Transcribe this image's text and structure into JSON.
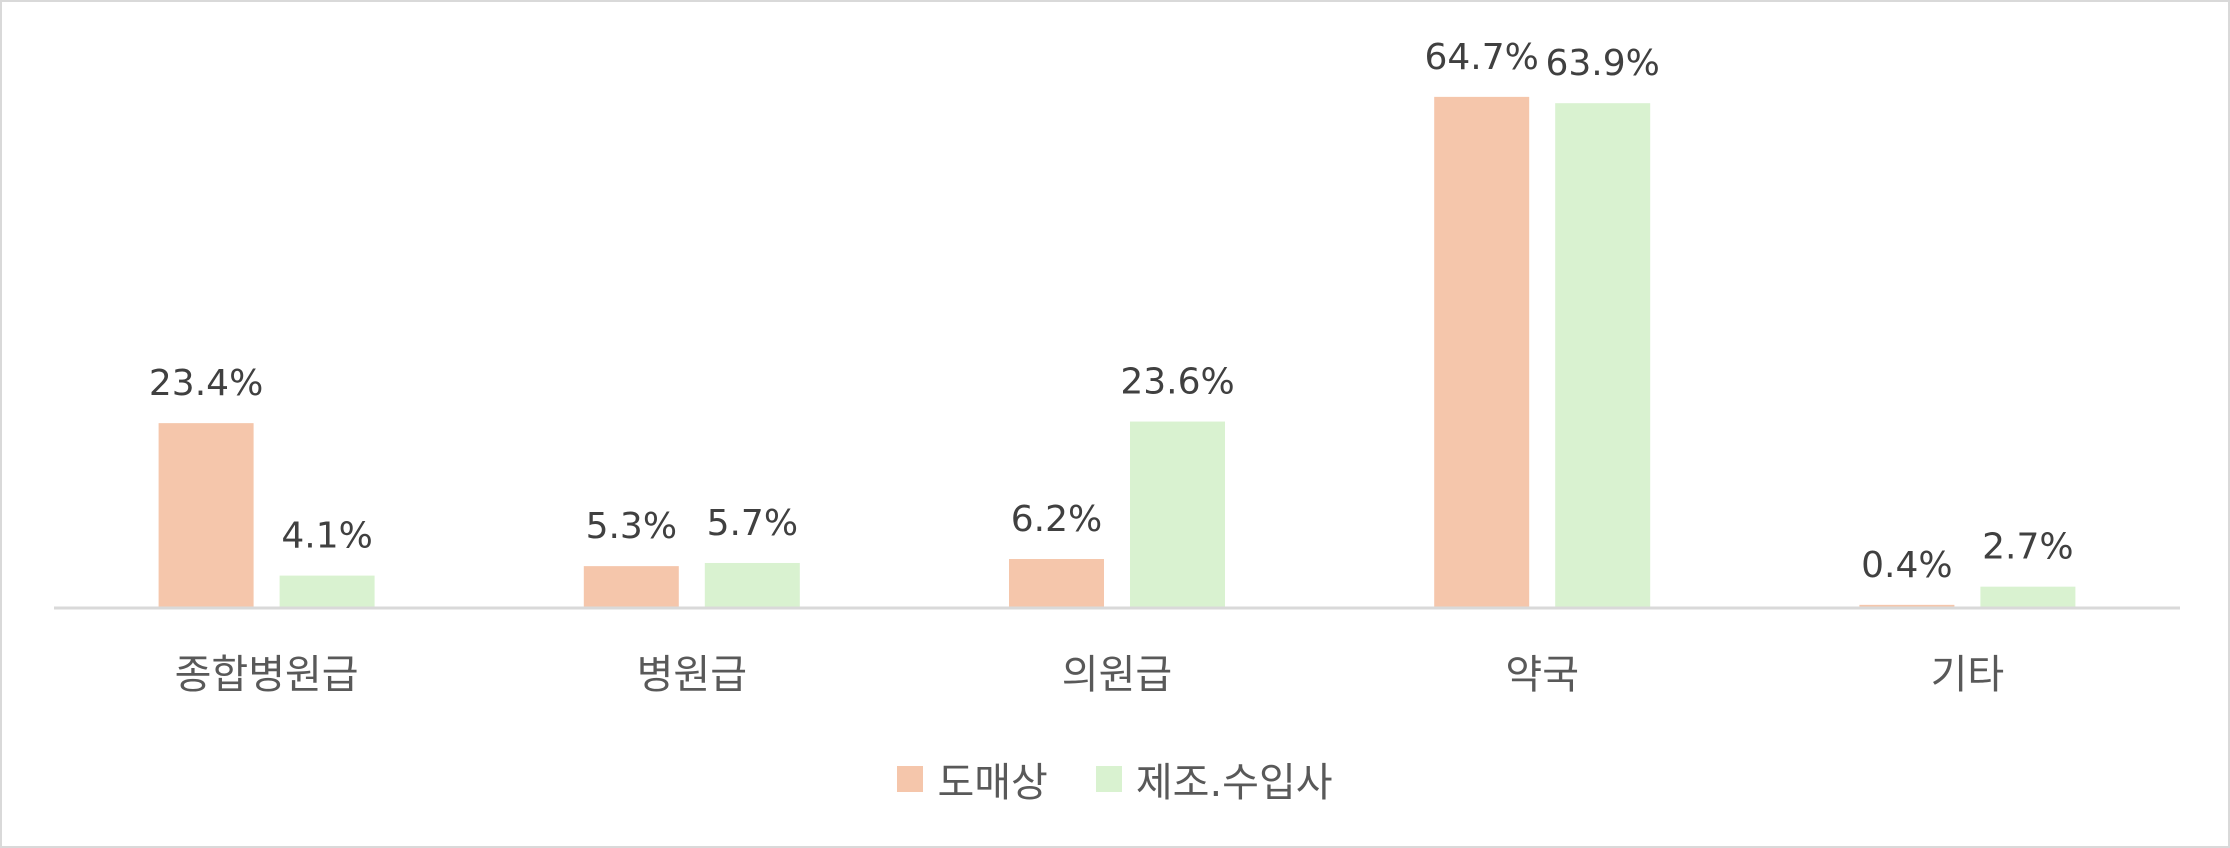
{
  "chart_data": {
    "type": "bar",
    "categories": [
      "종합병원급",
      "병원급",
      "의원급",
      "약국",
      "기타"
    ],
    "series": [
      {
        "name": "도매상",
        "values": [
          23.4,
          5.3,
          6.2,
          64.7,
          0.4
        ],
        "labels": [
          "23.4%",
          "5.3%",
          "6.2%",
          "64.7%",
          "0.4%"
        ],
        "color": "#f5c6ab"
      },
      {
        "name": "제조.수입사",
        "values": [
          4.1,
          5.7,
          23.6,
          63.9,
          2.7
        ],
        "labels": [
          "4.1%",
          "5.7%",
          "23.6%",
          "63.9%",
          "2.7%"
        ],
        "color": "#d9f2d0"
      }
    ],
    "ylim": [
      0,
      70
    ],
    "legend_position": "bottom",
    "grid": false,
    "axis_color": "#d9d9d9",
    "text_color": "#404040"
  }
}
